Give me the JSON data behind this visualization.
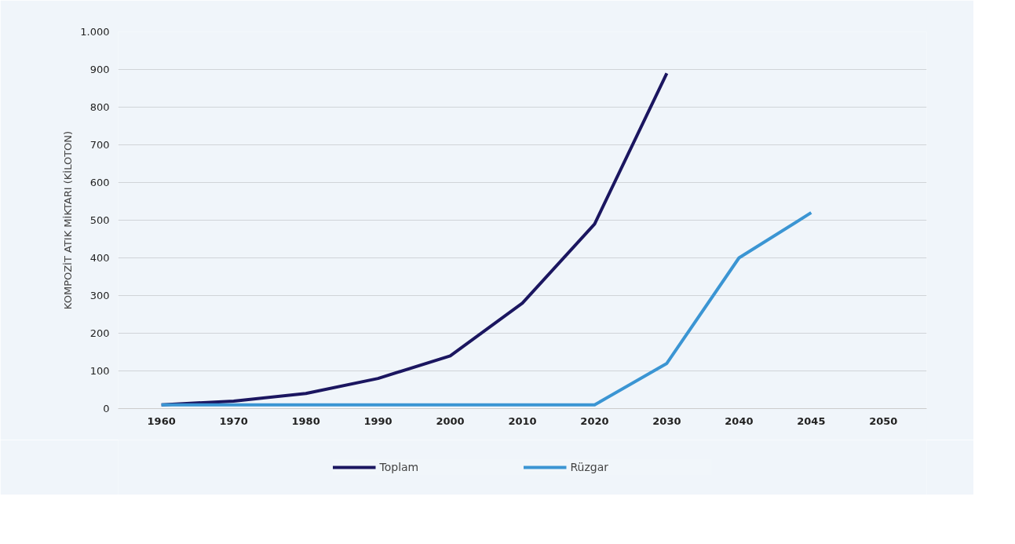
{
  "chart_data": {
    "type": "line",
    "ylabel": "KOMPOZİT ATIK MİKTARI (KİLOTON)",
    "categories": [
      "1960",
      "1970",
      "1980",
      "1990",
      "2000",
      "2010",
      "2020",
      "2030",
      "2040",
      "2045",
      "2050"
    ],
    "series": [
      {
        "name": "Toplam",
        "color": "#1b1660",
        "values": [
          10,
          20,
          40,
          80,
          140,
          280,
          490,
          890,
          null,
          null,
          null
        ]
      },
      {
        "name": "Rüzgar",
        "color": "#3b95d3",
        "values": [
          10,
          10,
          10,
          10,
          10,
          10,
          10,
          120,
          400,
          520,
          null
        ]
      }
    ],
    "ylim": [
      0,
      1000
    ],
    "yticks": [
      0,
      100,
      200,
      300,
      400,
      500,
      600,
      700,
      800,
      900,
      {
        "value": 1000,
        "label": "1.000"
      }
    ],
    "grid": "y",
    "legend": "bottom",
    "marker": "none",
    "line_style": "solid"
  }
}
